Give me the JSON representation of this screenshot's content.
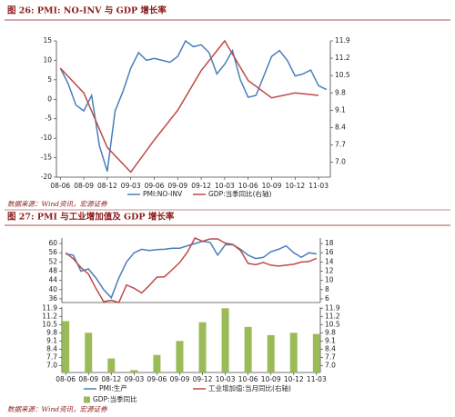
{
  "chart_data": [
    {
      "type": "line",
      "title": "图 26: PMI: NO-INV 与 GDP 增长率",
      "categories": [
        "08-06",
        null,
        null,
        "08-09",
        null,
        null,
        "08-12",
        null,
        null,
        "09-03",
        null,
        null,
        "09-06",
        null,
        null,
        "09-09",
        null,
        null,
        "09-12",
        null,
        null,
        "10-03",
        null,
        null,
        "10-06",
        null,
        null,
        "10-09",
        null,
        null,
        "10-12",
        null,
        null,
        "11-03",
        null
      ],
      "ylim": [
        -20,
        15
      ],
      "yticks": [
        15,
        10,
        5,
        0,
        -5,
        -10,
        -15,
        -20
      ],
      "y2lim": [
        6.4,
        11.9
      ],
      "y2ticks": [
        11.9,
        11.2,
        10.5,
        9.8,
        9.1,
        8.4,
        7.7,
        {
          "value": 7,
          "label": "7.0"
        }
      ],
      "series": [
        {
          "name": "PMI:NO-INV",
          "color": "#4a7ebb",
          "values": [
            8,
            4,
            -1.5,
            -3,
            1,
            -12,
            -18.5,
            -3,
            2,
            8,
            12,
            10,
            10.5,
            10,
            9.5,
            11,
            15,
            13.5,
            14,
            12,
            6.5,
            9,
            12.5,
            5,
            0.5,
            1,
            6,
            11,
            12.5,
            10,
            6,
            6.5,
            7.5,
            3.5,
            2.5
          ]
        },
        {
          "name": "GDP:当季同比(右轴)",
          "color": "#be4b48",
          "axis": "y2",
          "x": [
            "08-06",
            "08-09",
            "08-12",
            "09-03",
            "09-06",
            "09-09",
            "09-12",
            "10-03",
            "10-06",
            "10-09",
            "10-12",
            "11-03"
          ],
          "values": [
            10.8,
            9.8,
            7.6,
            6.6,
            7.9,
            9.1,
            10.7,
            11.9,
            10.3,
            9.6,
            9.8,
            9.7
          ]
        }
      ],
      "source": "数据来源：Wind资讯，宏源证券"
    },
    {
      "type": "line",
      "title": "图 27: PMI 与工业增加值及 GDP 增长率",
      "ylim": [
        34.4,
        62.4
      ],
      "yticks": [
        60,
        56,
        52,
        48,
        44,
        40,
        36
      ],
      "y2lim": [
        5.2,
        19.2
      ],
      "y2ticks": [
        18,
        16,
        14,
        12,
        10,
        8,
        6
      ],
      "series": [
        {
          "name": "PMI:生产",
          "color": "#4a7ebb",
          "values": [
            55.5,
            55,
            48,
            49,
            45,
            40,
            36.5,
            45,
            52,
            56,
            57.5,
            57,
            57.4,
            57.5,
            58,
            58,
            59,
            60,
            61,
            60.5,
            55,
            59.5,
            59.5,
            57.5,
            55,
            53.5,
            54,
            56.5,
            57.5,
            59,
            56,
            54,
            56,
            55.5
          ]
        },
        {
          "name": "工业增加值:当月同比(右轴)",
          "color": "#be4b48",
          "axis": "y2",
          "values": [
            16,
            14.7,
            12.8,
            11.4,
            8.2,
            5.4,
            5.7,
            5.2,
            9,
            8.3,
            7.3,
            8.9,
            10.7,
            10.8,
            12.3,
            13.9,
            16.1,
            19.2,
            18.5,
            19,
            19,
            18.1,
            17.8,
            16.5,
            13.7,
            13.4,
            13.9,
            13.3,
            13.1,
            13.3,
            13.5,
            14,
            14.1,
            14.8
          ]
        }
      ]
    },
    {
      "type": "bar",
      "categories": [
        "08-06",
        null,
        null,
        "08-09",
        null,
        null,
        "08-12",
        null,
        null,
        "09-03",
        null,
        null,
        "09-06",
        null,
        null,
        "09-09",
        null,
        null,
        "09-12",
        null,
        null,
        "10-03",
        null,
        null,
        "10-06",
        null,
        null,
        "10-09",
        null,
        null,
        "10-12",
        null,
        null,
        "11-03"
      ],
      "ylim": [
        6.4,
        12.0
      ],
      "yticks": [
        11.9,
        11.2,
        10.5,
        9.8,
        9.1,
        8.4,
        7.7,
        {
          "value": 7,
          "label": "7.0"
        }
      ],
      "y2lim": [
        6.4,
        12.0
      ],
      "y2ticks": [
        11.9,
        11.2,
        10.5,
        9.8,
        9.1,
        8.4,
        7.7,
        {
          "value": 7,
          "label": "7.0"
        }
      ],
      "series": [
        {
          "name": "GDP:当季同比",
          "color": "#9bbb59",
          "x": [
            "08-06",
            "08-09",
            "08-12",
            "09-03",
            "09-06",
            "09-09",
            "09-12",
            "10-03",
            "10-06",
            "10-09",
            "10-12",
            "11-03"
          ],
          "values": [
            10.8,
            9.8,
            7.6,
            6.6,
            7.9,
            9.1,
            10.7,
            11.9,
            10.3,
            9.6,
            9.8,
            9.7
          ]
        }
      ],
      "source": "数据来源：Wind资讯，宏源证券"
    }
  ]
}
